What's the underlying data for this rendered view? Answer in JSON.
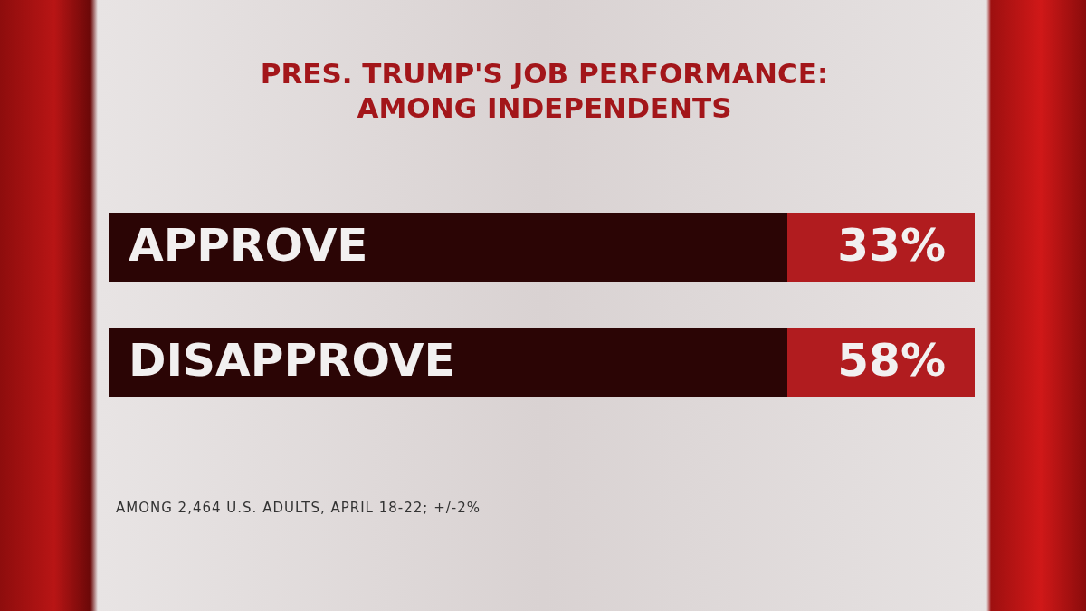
{
  "chart_data": {
    "type": "other",
    "title": "PRES. TRUMP'S JOB PERFORMANCE:\nAMONG INDEPENDENTS",
    "categories": [
      "APPROVE",
      "DISAPPROVE"
    ],
    "values": [
      33,
      58
    ],
    "value_labels": [
      "33%",
      "58%"
    ],
    "annotations": [
      "AMONG 2,464 U.S. ADULTS, APRIL 18-22; +/-2%"
    ]
  }
}
